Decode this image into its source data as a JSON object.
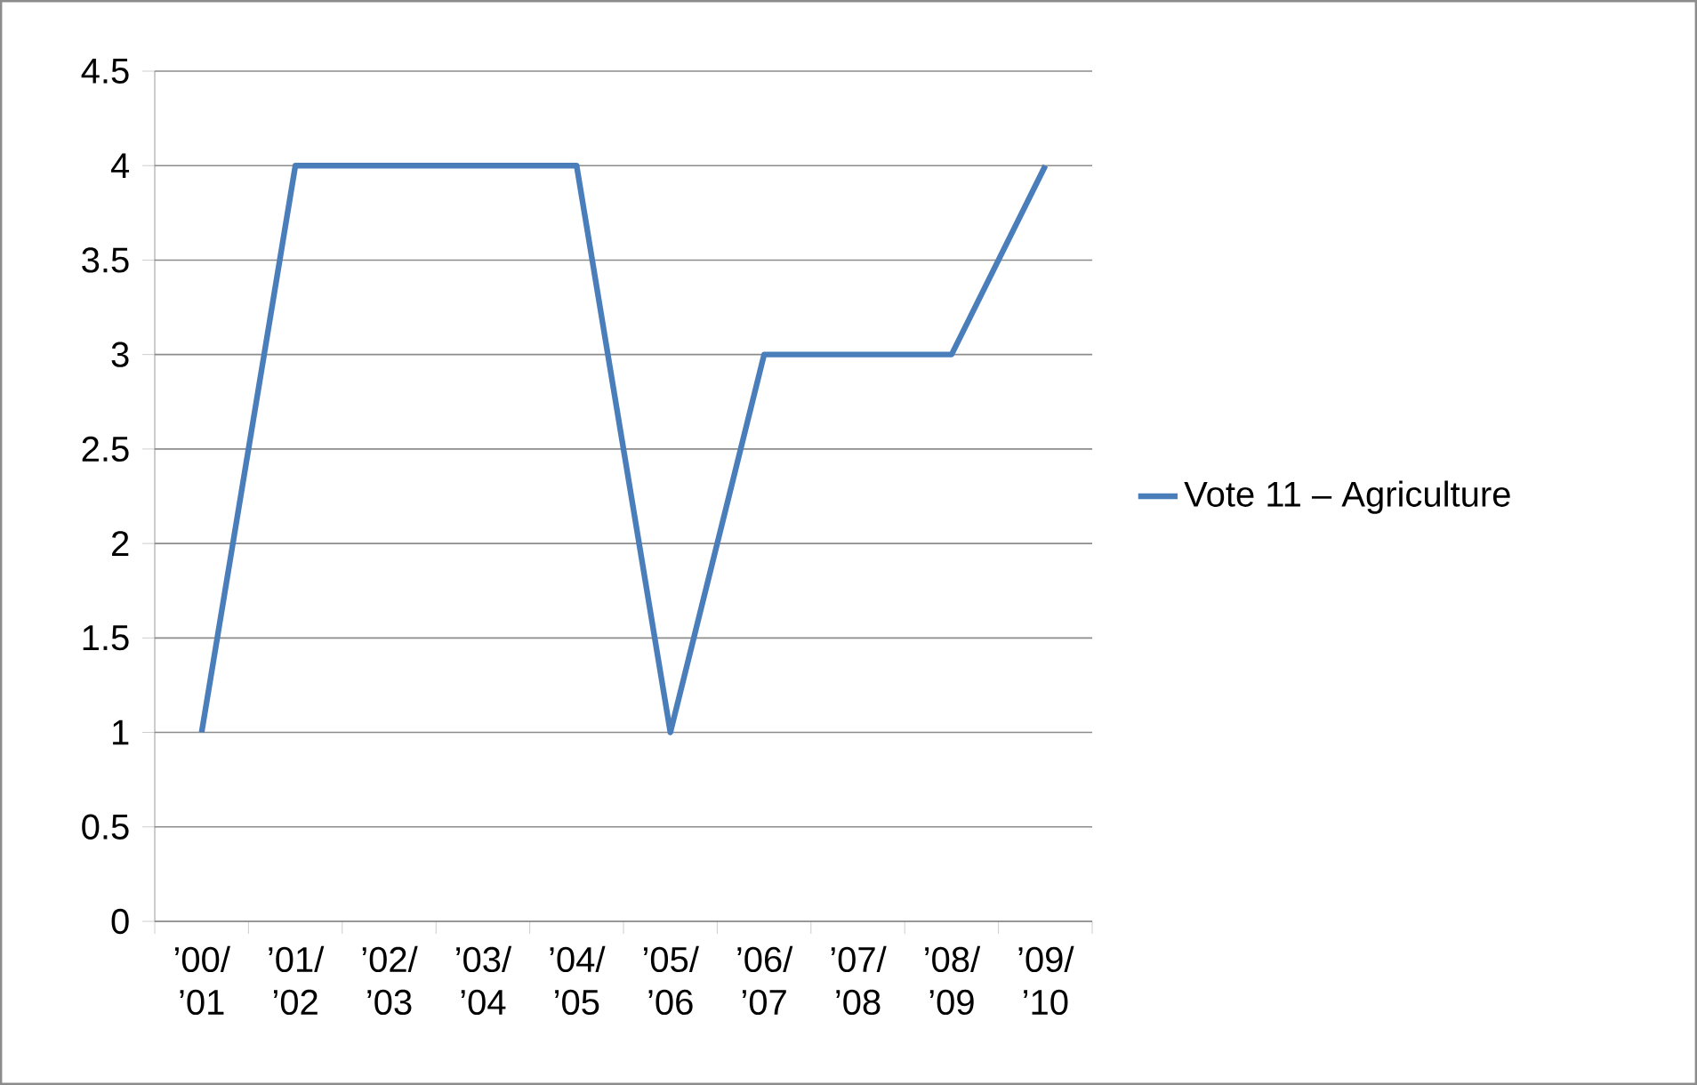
{
  "chart_data": {
    "type": "line",
    "categories": [
      "’00/ ’01",
      "’01/ ’02",
      "’02/ ’03",
      "’03/ ’04",
      "’04/ ’05",
      "’05/ ’06",
      "’06/ ’07",
      "’07/ ’08",
      "’08/ ’09",
      "’09/ ’10"
    ],
    "series": [
      {
        "name": "Vote 11 – Agriculture",
        "color": "#4a7ebb",
        "values": [
          1,
          4,
          4,
          4,
          4,
          1,
          3,
          3,
          3,
          4
        ]
      }
    ],
    "ylim": [
      0,
      4.5
    ],
    "yticks": [
      0,
      0.5,
      1,
      1.5,
      2,
      2.5,
      3,
      3.5,
      4,
      4.5
    ],
    "grid": "y",
    "legend": "right",
    "marker": "none",
    "line_style": "solid"
  }
}
